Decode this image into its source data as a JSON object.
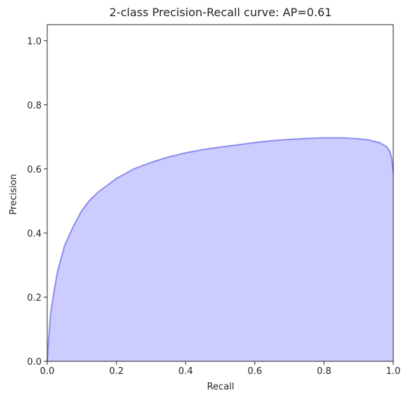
{
  "chart_data": {
    "type": "area",
    "title": "2-class Precision-Recall curve: AP=0.61",
    "xlabel": "Recall",
    "ylabel": "Precision",
    "xlim": [
      0.0,
      1.0
    ],
    "ylim": [
      0.0,
      1.05
    ],
    "xticks": [
      "0.0",
      "0.2",
      "0.4",
      "0.6",
      "0.8",
      "1.0"
    ],
    "yticks": [
      "0.0",
      "0.2",
      "0.4",
      "0.6",
      "0.8",
      "1.0"
    ],
    "grid": false,
    "fill_color": "#ccccff",
    "line_color": "#8c8cf0",
    "series": [
      {
        "x": [
          0.0,
          0.005,
          0.01,
          0.02,
          0.03,
          0.05,
          0.075,
          0.1,
          0.125,
          0.15,
          0.2,
          0.25,
          0.3,
          0.35,
          0.4,
          0.45,
          0.5,
          0.55,
          0.6,
          0.65,
          0.7,
          0.75,
          0.8,
          0.85,
          0.9,
          0.93,
          0.96,
          0.98,
          0.99,
          0.995,
          1.0
        ],
        "y": [
          0.0,
          0.08,
          0.15,
          0.22,
          0.28,
          0.36,
          0.42,
          0.47,
          0.505,
          0.53,
          0.57,
          0.6,
          0.62,
          0.637,
          0.65,
          0.66,
          0.668,
          0.675,
          0.682,
          0.688,
          0.692,
          0.695,
          0.697,
          0.697,
          0.694,
          0.69,
          0.682,
          0.67,
          0.655,
          0.635,
          0.59
        ]
      }
    ]
  }
}
